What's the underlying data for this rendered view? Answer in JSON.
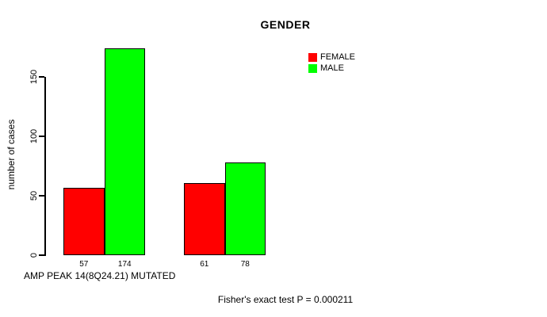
{
  "chart_data": {
    "type": "bar",
    "title": "GENDER",
    "ylabel": "number of cases",
    "x_caption": "AMP PEAK 14(8Q24.21) MUTATED",
    "footnote": "Fisher's exact test P = 0.000211",
    "series": [
      {
        "name": "FEMALE",
        "color": "#FF0000"
      },
      {
        "name": "MALE",
        "color": "#00FF00"
      }
    ],
    "groups": [
      {
        "values": [
          57,
          174
        ],
        "labels": [
          "57",
          "174"
        ]
      },
      {
        "values": [
          61,
          78
        ],
        "labels": [
          "61",
          "78"
        ]
      }
    ],
    "yticks": [
      0,
      50,
      100,
      150
    ],
    "ylim": [
      0,
      175
    ],
    "grid": false,
    "legend_position": "upper-right",
    "colors": {
      "axis": "#000000",
      "text": "#000000",
      "background": "#FFFFFF"
    }
  }
}
